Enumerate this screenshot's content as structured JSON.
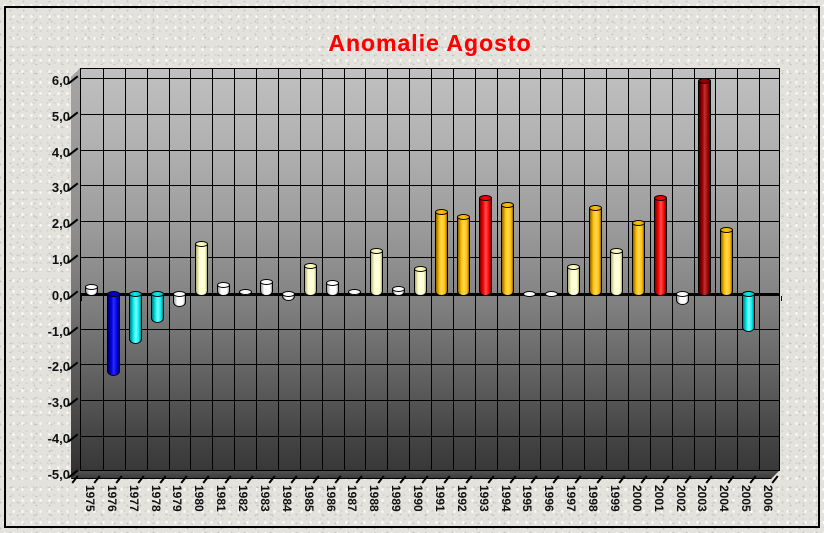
{
  "title": {
    "text": "Anomalie Agosto",
    "color": "#FF0000"
  },
  "chart_data": {
    "type": "bar",
    "subtype": "3d-cylinder-columns",
    "title": "Anomalie Agosto",
    "title_color": "#FF0000",
    "categories": [
      "1975",
      "1976",
      "1977",
      "1978",
      "1979",
      "1980",
      "1981",
      "1982",
      "1983",
      "1984",
      "1985",
      "1986",
      "1987",
      "1988",
      "1989",
      "1990",
      "1991",
      "1992",
      "1993",
      "1994",
      "1995",
      "1996",
      "1997",
      "1998",
      "1999",
      "2000",
      "2001",
      "2002",
      "2003",
      "2004",
      "2005",
      "2006"
    ],
    "values": [
      0.25,
      -2.3,
      -1.4,
      -0.8,
      -0.35,
      1.45,
      0.3,
      0.1,
      0.4,
      -0.2,
      0.85,
      0.35,
      0.1,
      1.25,
      0.2,
      0.75,
      2.35,
      2.2,
      2.75,
      2.55,
      0.05,
      0.05,
      0.8,
      2.45,
      1.25,
      2.05,
      2.75,
      -0.3,
      6.0,
      1.85,
      -1.05,
      0
    ],
    "point_colors": [
      "white",
      "blue",
      "cyan",
      "cyan",
      "white",
      "pale_yellow",
      "white",
      "white",
      "white",
      "white",
      "pale_yellow",
      "white",
      "white",
      "pale_yellow",
      "white",
      "pale_yellow",
      "gold",
      "gold",
      "red",
      "gold",
      "white",
      "white",
      "pale_yellow",
      "gold",
      "pale_yellow",
      "gold",
      "red",
      "white",
      "dark_red",
      "gold",
      "cyan",
      "none"
    ],
    "palette": {
      "white": {
        "base": "#FFFFFF",
        "edge": "#9E9E9E",
        "hi": "#FFFFFF",
        "cap": "#F2F2F2"
      },
      "blue": {
        "base": "#0000E0",
        "edge": "#00006A",
        "hi": "#2A2AFF",
        "cap": "#0000B0"
      },
      "cyan": {
        "base": "#00EDED",
        "edge": "#007D7D",
        "hi": "#7DFFFF",
        "cap": "#00C0C0"
      },
      "pale_yellow": {
        "base": "#FFFFC2",
        "edge": "#AFAF85",
        "hi": "#FFFFEA",
        "cap": "#E8E8A8"
      },
      "gold": {
        "base": "#FFC000",
        "edge": "#8F6500",
        "hi": "#FFD75E",
        "cap": "#DFA600"
      },
      "red": {
        "base": "#FF0000",
        "edge": "#7D0000",
        "hi": "#FF5252",
        "cap": "#D40000"
      },
      "dark_red": {
        "base": "#990000",
        "edge": "#3D0000",
        "hi": "#C23030",
        "cap": "#780000"
      }
    },
    "ylim": [
      -5,
      6
    ],
    "ytick_step": 1,
    "ytick_labels": [
      "6,0",
      "5,0",
      "4,0",
      "3,0",
      "2,0",
      "1,0",
      "0,0",
      "-1,0",
      "-2,0",
      "-3,0",
      "-4,0",
      "-5,0"
    ],
    "xlabel": "",
    "ylabel": "",
    "grid": true,
    "legend": "none"
  }
}
